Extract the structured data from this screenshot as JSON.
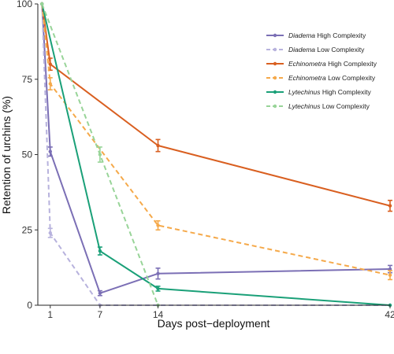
{
  "chart_data": {
    "type": "line",
    "xlabel": "Days post−deployment",
    "ylabel": "Retention of urchins (%)",
    "x_ticks": [
      1,
      7,
      14,
      42
    ],
    "y_ticks": [
      0,
      25,
      50,
      75,
      100
    ],
    "xlim": [
      -0.5,
      42
    ],
    "ylim": [
      0,
      100
    ],
    "grid": false,
    "legend_position": "top-right",
    "series": [
      {
        "name": "Diadema High Complexity",
        "species": "Diadema",
        "complexity": "High Complexity",
        "color": "#7b6fb5",
        "dashed": false,
        "x": [
          0,
          1,
          7,
          14,
          42
        ],
        "y": [
          100,
          51,
          4,
          10.5,
          12
        ],
        "err": [
          0,
          1.5,
          0.8,
          1.8,
          1.2
        ]
      },
      {
        "name": "Diadema Low Complexity",
        "species": "Diadema",
        "complexity": "Low Complexity",
        "color": "#b7b2dd",
        "dashed": true,
        "x": [
          0,
          1,
          7,
          14,
          42
        ],
        "y": [
          100,
          24,
          0,
          0,
          0
        ],
        "err": [
          0,
          1.5,
          0,
          0,
          0
        ]
      },
      {
        "name": "Echinometra High Complexity",
        "species": "Echinometra",
        "complexity": "High Complexity",
        "color": "#d95f20",
        "dashed": false,
        "x": [
          0,
          1,
          14,
          42
        ],
        "y": [
          100,
          80,
          53,
          33
        ],
        "err": [
          0,
          2,
          2,
          1.8
        ]
      },
      {
        "name": "Echinometra Low Complexity",
        "species": "Echinometra",
        "complexity": "Low Complexity",
        "color": "#f5a94a",
        "dashed": true,
        "x": [
          0,
          1,
          14,
          42
        ],
        "y": [
          100,
          73.5,
          26.5,
          10
        ],
        "err": [
          0,
          2,
          1.5,
          1.5
        ]
      },
      {
        "name": "Lytechinus High Complexity",
        "species": "Lytechinus",
        "complexity": "High Complexity",
        "color": "#1aa078",
        "dashed": false,
        "x": [
          0,
          7,
          14,
          42
        ],
        "y": [
          100,
          18,
          5.5,
          0
        ],
        "err": [
          0,
          1.3,
          0.8,
          0
        ]
      },
      {
        "name": "Lytechinus Low Complexity",
        "species": "Lytechinus",
        "complexity": "Low Complexity",
        "color": "#98d498",
        "dashed": true,
        "x": [
          0,
          7,
          14
        ],
        "y": [
          100,
          50,
          0
        ],
        "err": [
          0,
          2.5,
          0
        ]
      }
    ]
  }
}
